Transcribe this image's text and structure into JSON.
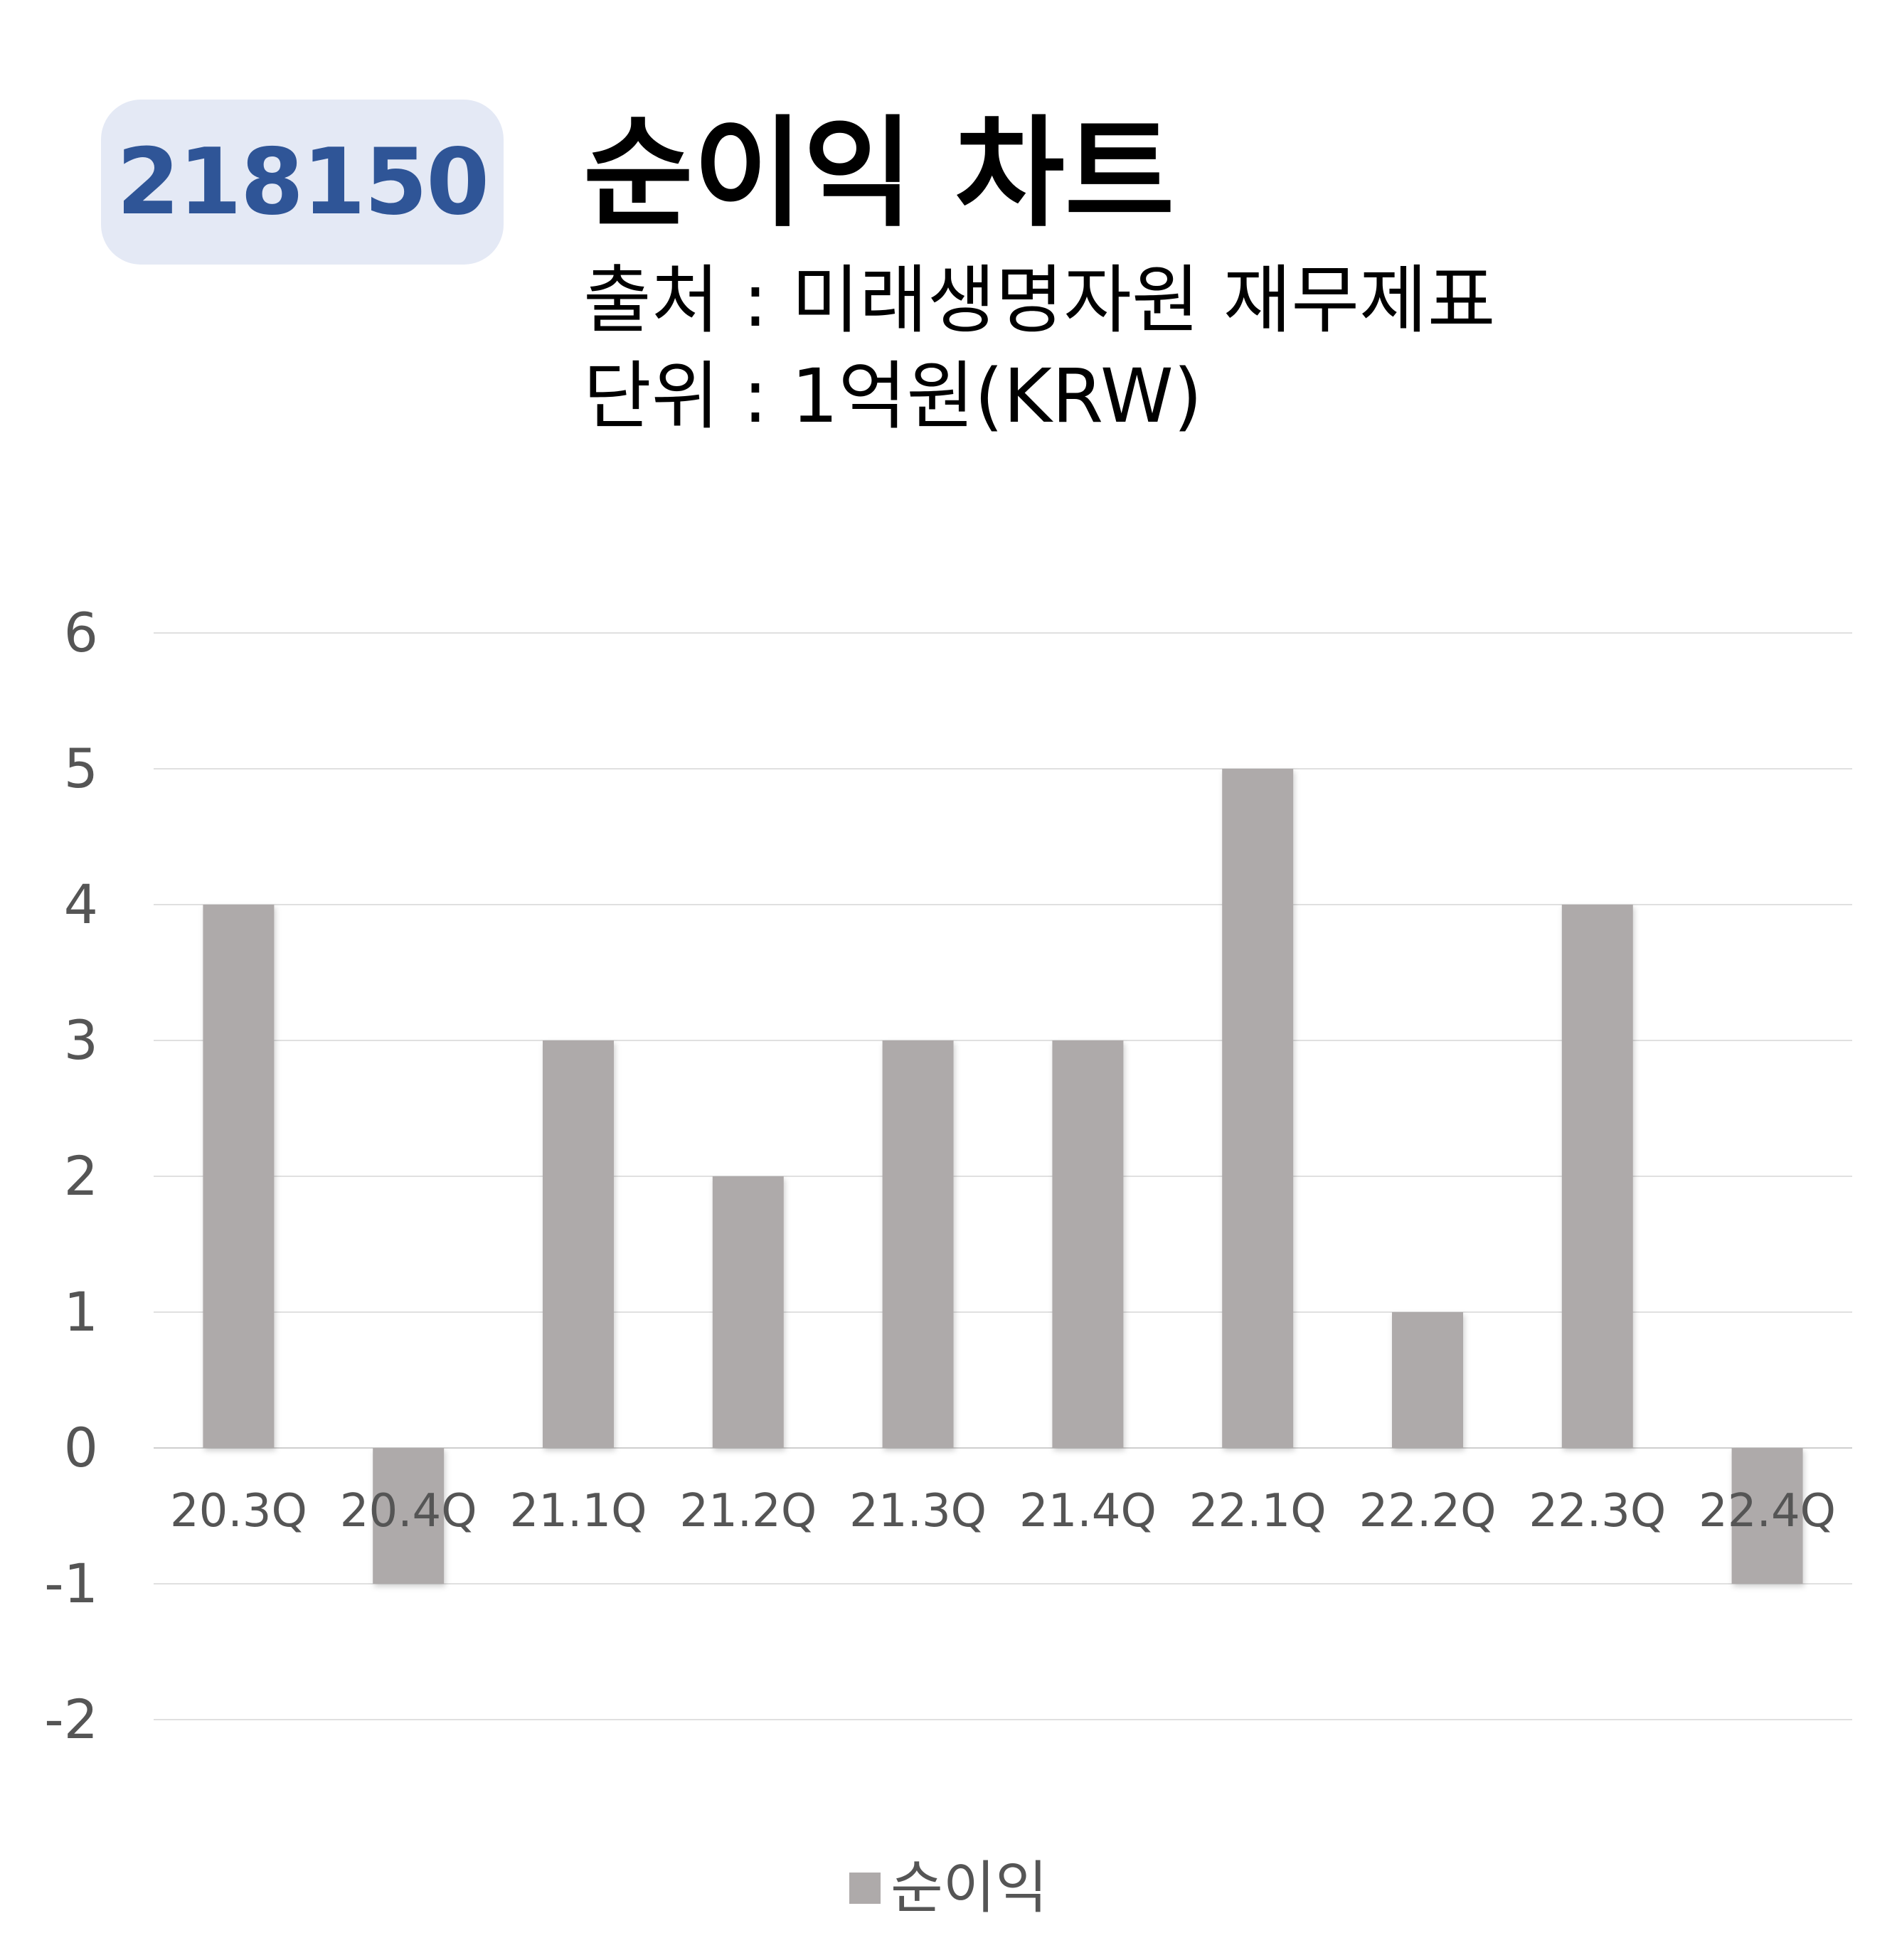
{
  "header": {
    "ticker": "218150",
    "title": "순이익 차트",
    "source": "출처 : 미래생명자원 재무제표",
    "unit": "단위 : 1억원(KRW)"
  },
  "chart_data": {
    "type": "bar",
    "title": "순이익 차트",
    "categories": [
      "20.3Q",
      "20.4Q",
      "21.1Q",
      "21.2Q",
      "21.3Q",
      "21.4Q",
      "22.1Q",
      "22.2Q",
      "22.3Q",
      "22.4Q"
    ],
    "series": [
      {
        "name": "순이익",
        "values": [
          4,
          -1,
          3,
          2,
          3,
          3,
          5,
          1,
          4,
          -1
        ],
        "color": "#aeaaaa"
      }
    ],
    "yticks": [
      "6",
      "5",
      "4",
      "3",
      "2",
      "1",
      "0",
      "-1",
      "-2"
    ],
    "ylim": [
      -2,
      6
    ],
    "grid": true,
    "legend_position": "bottom"
  }
}
